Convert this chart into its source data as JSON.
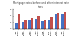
{
  "title": "Mortgage rates before and after interest rate rises",
  "groups": [
    "Jan\n2022",
    "Mar\n2022",
    "May\n2022",
    "Jun\n2022",
    "Aug\n2022",
    "Sep\n2022",
    "Nov\n2022",
    "Jan\n2023"
  ],
  "before_values": [
    1.6,
    1.9,
    2.5,
    3.0,
    2.2,
    2.8,
    4.4,
    4.5
  ],
  "after_values": [
    4.5,
    2.6,
    3.2,
    4.0,
    2.8,
    3.5,
    4.9,
    5.0
  ],
  "bar_color_before": "#4472c4",
  "bar_color_after": "#c0504d",
  "background_color": "#ffffff",
  "ylim": [
    0,
    6.0
  ],
  "legend_before": "Before interest rate rise",
  "legend_after": "After interest rate rise",
  "title_fontsize": 1.8,
  "tick_fontsize": 1.5
}
